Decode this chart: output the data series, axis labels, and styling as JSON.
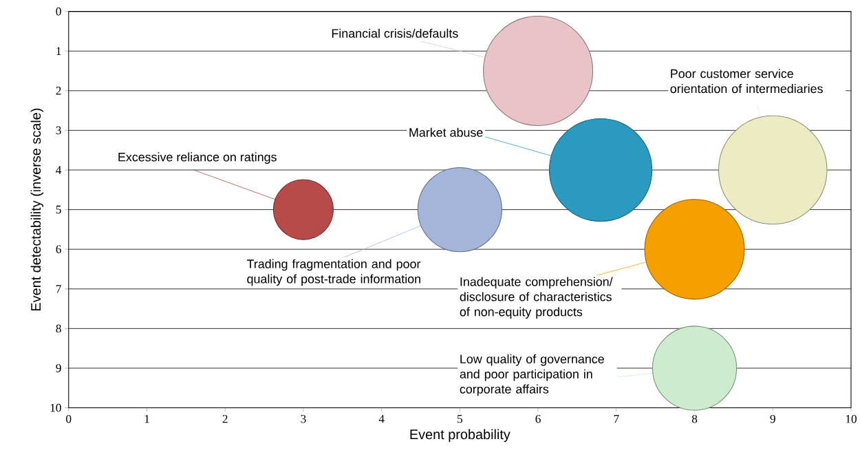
{
  "chart_data": {
    "type": "bubble",
    "xlabel": "Event probability",
    "ylabel": "Event detectability (inverse scale)",
    "x": [
      3,
      5,
      6.8,
      6,
      9,
      8,
      8
    ],
    "values": [
      5,
      5,
      4,
      1.5,
      4,
      6,
      9
    ],
    "sizes": [
      0.3,
      0.59,
      0.88,
      1,
      0.98,
      0.83,
      0.59
    ],
    "colors": [
      "#b84a4a",
      "#a3b5d8",
      "#2a9bbf",
      "#e8c4c8",
      "#ecebc4",
      "#f5a000",
      "#cdebcd"
    ],
    "xlim": [
      0,
      10
    ],
    "ylim": [
      10,
      0
    ],
    "xticks": [
      0,
      1,
      2,
      3,
      4,
      5,
      6,
      7,
      8,
      9,
      10
    ],
    "yticks": [
      0,
      1,
      2,
      3,
      4,
      5,
      6,
      7,
      8,
      9,
      10
    ],
    "grid": "y",
    "annotations": [
      {
        "text": "Excessive reliance on ratings",
        "x": 3,
        "y": 5
      },
      {
        "text": "Trading fragmentation and poor quality of post-trade information",
        "x": 5,
        "y": 5
      },
      {
        "text": "Market abuse",
        "x": 6.8,
        "y": 4
      },
      {
        "text": "Financial crisis/defaults",
        "x": 6,
        "y": 1.5
      },
      {
        "text": "Poor customer service orientation of intermediaries",
        "x": 9,
        "y": 4
      },
      {
        "text": "Inadequate comprehension/ disclosure of characteristics of non-equity products",
        "x": 8,
        "y": 6
      },
      {
        "text": "Low quality of governance and poor participation in corporate affairs",
        "x": 8,
        "y": 9
      }
    ]
  }
}
